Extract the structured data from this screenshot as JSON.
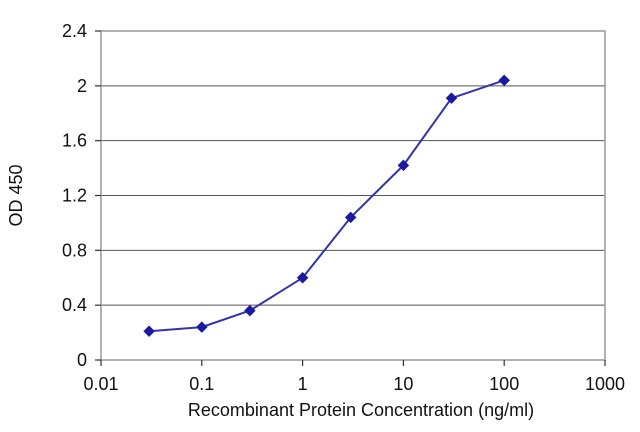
{
  "chart_data": {
    "type": "line",
    "title": "",
    "xlabel": "Recombinant Protein Concentration (ng/ml)",
    "ylabel": "OD 450",
    "x_scale": "log",
    "xlim": [
      0.01,
      1000
    ],
    "ylim": [
      0,
      2.4
    ],
    "x_ticks": [
      "0.01",
      "0.1",
      "1",
      "10",
      "100",
      "1000"
    ],
    "y_ticks": [
      "0",
      "0.4",
      "0.8",
      "1.2",
      "1.6",
      "2",
      "2.4"
    ],
    "grid": "horizontal",
    "legend": "none",
    "series": [
      {
        "color": "#3333aa",
        "x": [
          0.03,
          0.1,
          0.3,
          1,
          3,
          10,
          30,
          100
        ],
        "y": [
          0.21,
          0.24,
          0.36,
          0.6,
          1.04,
          1.42,
          1.91,
          2.04
        ]
      }
    ]
  }
}
